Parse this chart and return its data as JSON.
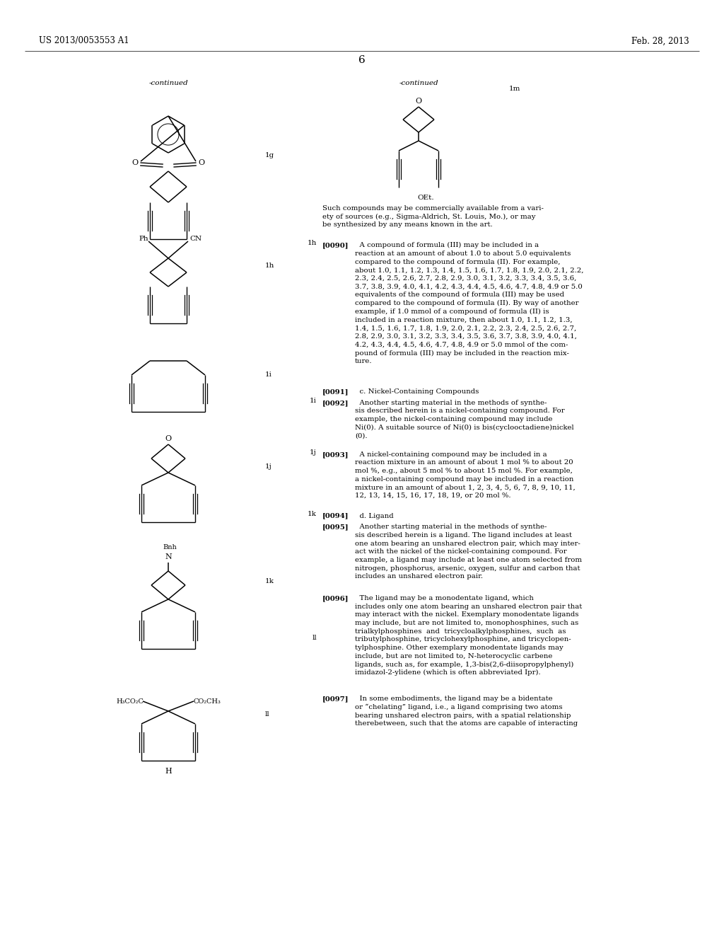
{
  "page_header_left": "US 2013/0053553 A1",
  "page_header_right": "Feb. 28, 2013",
  "page_number": "6",
  "background_color": "#ffffff",
  "left_continued": "-continued",
  "right_continued": "-continued",
  "label_1g": "1g",
  "label_1h": "1h",
  "label_1i": "1i",
  "label_1j": "1j",
  "label_1k": "1k",
  "label_ll": "ll",
  "label_1m": "1m"
}
